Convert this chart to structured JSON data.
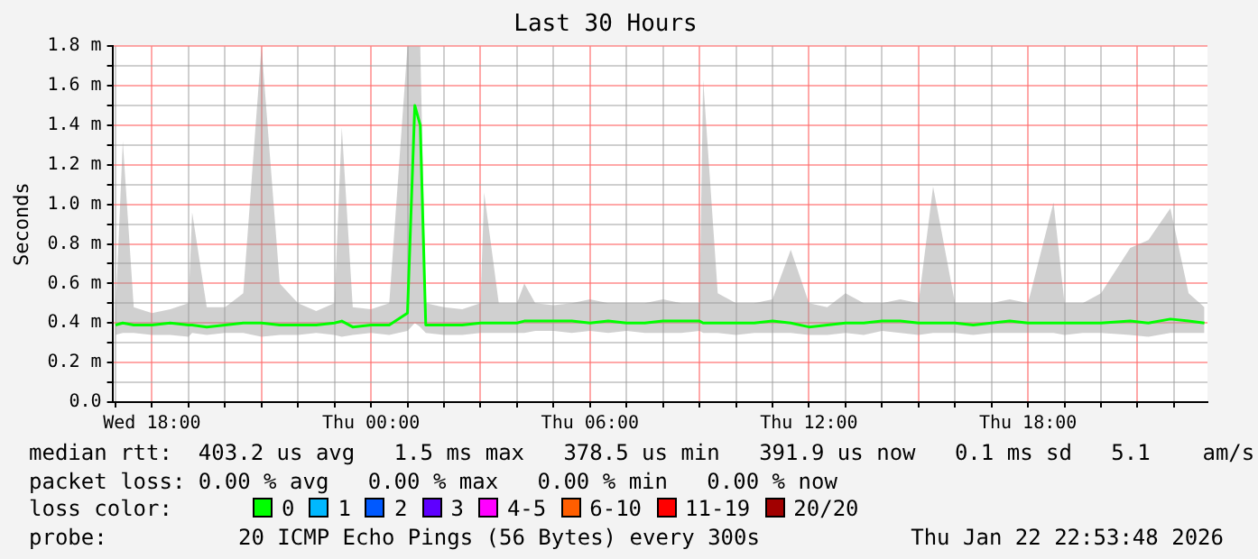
{
  "chart_data": {
    "type": "line",
    "title": "Last 30 Hours",
    "ylabel": "Seconds",
    "xlim": [
      "2026-01-21T16:55",
      "2026-01-22T22:55"
    ],
    "xticks": [
      {
        "value": "2026-01-21T17:00",
        "label": null
      },
      {
        "value": "2026-01-21T18:00",
        "label": "Wed 18:00"
      },
      {
        "value": "2026-01-21T19:00",
        "label": null
      },
      {
        "value": "2026-01-21T20:00",
        "label": null
      },
      {
        "value": "2026-01-21T21:00",
        "label": null
      },
      {
        "value": "2026-01-21T22:00",
        "label": null
      },
      {
        "value": "2026-01-21T23:00",
        "label": null
      },
      {
        "value": "2026-01-22T00:00",
        "label": "Thu 00:00"
      },
      {
        "value": "2026-01-22T01:00",
        "label": null
      },
      {
        "value": "2026-01-22T02:00",
        "label": null
      },
      {
        "value": "2026-01-22T03:00",
        "label": null
      },
      {
        "value": "2026-01-22T04:00",
        "label": null
      },
      {
        "value": "2026-01-22T05:00",
        "label": null
      },
      {
        "value": "2026-01-22T06:00",
        "label": "Thu 06:00"
      },
      {
        "value": "2026-01-22T07:00",
        "label": null
      },
      {
        "value": "2026-01-22T08:00",
        "label": null
      },
      {
        "value": "2026-01-22T09:00",
        "label": null
      },
      {
        "value": "2026-01-22T10:00",
        "label": null
      },
      {
        "value": "2026-01-22T11:00",
        "label": null
      },
      {
        "value": "2026-01-22T12:00",
        "label": "Thu 12:00"
      },
      {
        "value": "2026-01-22T13:00",
        "label": null
      },
      {
        "value": "2026-01-22T14:00",
        "label": null
      },
      {
        "value": "2026-01-22T15:00",
        "label": null
      },
      {
        "value": "2026-01-22T16:00",
        "label": null
      },
      {
        "value": "2026-01-22T17:00",
        "label": null
      },
      {
        "value": "2026-01-22T18:00",
        "label": "Thu 18:00"
      },
      {
        "value": "2026-01-22T19:00",
        "label": null
      },
      {
        "value": "2026-01-22T20:00",
        "label": null
      },
      {
        "value": "2026-01-22T21:00",
        "label": null
      },
      {
        "value": "2026-01-22T22:00",
        "label": null
      }
    ],
    "ylim": [
      0,
      1.8
    ],
    "yticks": [
      {
        "value": 0,
        "label": "0.0"
      },
      {
        "value": 0.1,
        "label": null
      },
      {
        "value": 0.2,
        "label": "0.2 m"
      },
      {
        "value": 0.3,
        "label": null
      },
      {
        "value": 0.4,
        "label": "0.4 m"
      },
      {
        "value": 0.5,
        "label": null
      },
      {
        "value": 0.6,
        "label": "0.6 m"
      },
      {
        "value": 0.7,
        "label": null
      },
      {
        "value": 0.8,
        "label": "0.8 m"
      },
      {
        "value": 0.9,
        "label": null
      },
      {
        "value": 1.0,
        "label": "1.0 m"
      },
      {
        "value": 1.1,
        "label": null
      },
      {
        "value": 1.2,
        "label": "1.2 m"
      },
      {
        "value": 1.3,
        "label": null
      },
      {
        "value": 1.4,
        "label": "1.4 m"
      },
      {
        "value": 1.5,
        "label": null
      },
      {
        "value": 1.6,
        "label": "1.6 m"
      },
      {
        "value": 1.7,
        "label": null
      },
      {
        "value": 1.8,
        "label": "1.8 m"
      }
    ],
    "grid": true,
    "legend": false,
    "marker": "none",
    "line_style": "solid",
    "series": [
      {
        "color": "#00ff00",
        "x": [
          "2026-01-21T17:00",
          "2026-01-21T17:12",
          "2026-01-21T17:30",
          "2026-01-21T18:00",
          "2026-01-21T18:30",
          "2026-01-21T19:00",
          "2026-01-21T19:06",
          "2026-01-21T19:30",
          "2026-01-21T20:00",
          "2026-01-21T20:30",
          "2026-01-21T21:00",
          "2026-01-21T21:30",
          "2026-01-21T22:00",
          "2026-01-21T22:30",
          "2026-01-21T23:00",
          "2026-01-21T23:12",
          "2026-01-21T23:30",
          "2026-01-22T00:00",
          "2026-01-22T00:30",
          "2026-01-22T01:00",
          "2026-01-22T01:12",
          "2026-01-22T01:21",
          "2026-01-22T01:30",
          "2026-01-22T02:00",
          "2026-01-22T02:30",
          "2026-01-22T03:00",
          "2026-01-22T03:06",
          "2026-01-22T03:30",
          "2026-01-22T04:00",
          "2026-01-22T04:12",
          "2026-01-22T04:30",
          "2026-01-22T05:00",
          "2026-01-22T05:30",
          "2026-01-22T06:00",
          "2026-01-22T06:30",
          "2026-01-22T07:00",
          "2026-01-22T07:30",
          "2026-01-22T08:00",
          "2026-01-22T08:30",
          "2026-01-22T09:00",
          "2026-01-22T09:06",
          "2026-01-22T09:30",
          "2026-01-22T10:00",
          "2026-01-22T10:30",
          "2026-01-22T11:00",
          "2026-01-22T11:30",
          "2026-01-22T12:00",
          "2026-01-22T12:30",
          "2026-01-22T13:00",
          "2026-01-22T13:30",
          "2026-01-22T14:00",
          "2026-01-22T14:30",
          "2026-01-22T15:00",
          "2026-01-22T15:24",
          "2026-01-22T16:00",
          "2026-01-22T16:30",
          "2026-01-22T17:00",
          "2026-01-22T17:30",
          "2026-01-22T18:00",
          "2026-01-22T18:42",
          "2026-01-22T19:00",
          "2026-01-22T19:30",
          "2026-01-22T20:00",
          "2026-01-22T20:48",
          "2026-01-22T21:18",
          "2026-01-22T21:54",
          "2026-01-22T22:24",
          "2026-01-22T22:50"
        ],
        "values": [
          0.39,
          0.4,
          0.39,
          0.39,
          0.4,
          0.39,
          0.39,
          0.38,
          0.39,
          0.4,
          0.4,
          0.39,
          0.39,
          0.39,
          0.4,
          0.41,
          0.38,
          0.39,
          0.39,
          0.45,
          1.5,
          1.4,
          0.39,
          0.39,
          0.39,
          0.4,
          0.4,
          0.4,
          0.4,
          0.41,
          0.41,
          0.41,
          0.41,
          0.4,
          0.41,
          0.4,
          0.4,
          0.41,
          0.41,
          0.41,
          0.4,
          0.4,
          0.4,
          0.4,
          0.41,
          0.4,
          0.38,
          0.39,
          0.4,
          0.4,
          0.41,
          0.41,
          0.4,
          0.4,
          0.4,
          0.39,
          0.4,
          0.41,
          0.4,
          0.4,
          0.4,
          0.4,
          0.4,
          0.41,
          0.4,
          0.42,
          0.41,
          0.4
        ],
        "lower": [
          0.34,
          0.35,
          0.35,
          0.34,
          0.34,
          0.33,
          0.35,
          0.34,
          0.35,
          0.35,
          0.33,
          0.34,
          0.34,
          0.35,
          0.34,
          0.33,
          0.34,
          0.35,
          0.34,
          0.36,
          0.4,
          0.38,
          0.35,
          0.34,
          0.34,
          0.35,
          0.35,
          0.35,
          0.35,
          0.35,
          0.36,
          0.36,
          0.35,
          0.36,
          0.35,
          0.36,
          0.35,
          0.35,
          0.35,
          0.36,
          0.35,
          0.35,
          0.34,
          0.35,
          0.35,
          0.35,
          0.34,
          0.34,
          0.35,
          0.34,
          0.36,
          0.35,
          0.34,
          0.35,
          0.35,
          0.34,
          0.35,
          0.35,
          0.35,
          0.35,
          0.34,
          0.35,
          0.35,
          0.34,
          0.33,
          0.35,
          0.35,
          0.35
        ],
        "upper": [
          0.45,
          1.32,
          0.48,
          0.45,
          0.47,
          0.5,
          0.96,
          0.48,
          0.48,
          0.55,
          1.8,
          0.6,
          0.5,
          0.46,
          0.5,
          1.39,
          0.48,
          0.47,
          0.5,
          1.8,
          1.8,
          1.8,
          0.5,
          0.48,
          0.47,
          0.5,
          1.06,
          0.5,
          0.5,
          0.6,
          0.5,
          0.49,
          0.5,
          0.52,
          0.5,
          0.5,
          0.5,
          0.52,
          0.5,
          0.5,
          1.63,
          0.55,
          0.5,
          0.5,
          0.52,
          0.77,
          0.5,
          0.48,
          0.55,
          0.5,
          0.5,
          0.52,
          0.5,
          1.09,
          0.5,
          0.5,
          0.5,
          0.52,
          0.5,
          1.01,
          0.5,
          0.5,
          0.55,
          0.78,
          0.82,
          0.98,
          0.55,
          0.48
        ]
      }
    ],
    "annotations": [
      "median rtt:  403.2 us avg   1.5 ms max   378.5 us min   391.9 us now   0.1 ms sd   5.1    am/s",
      "packet loss: 0.00 % avg   0.00 % max   0.00 % min   0.00 % now",
      "loss color:",
      "0",
      "1",
      "2",
      "3",
      "4-5",
      "6-10",
      "11-19",
      "20/20",
      "probe:",
      "20 ICMP Echo Pings (56 Bytes) every 300s",
      "Thu Jan 22 22:53:48 2026"
    ]
  }
}
